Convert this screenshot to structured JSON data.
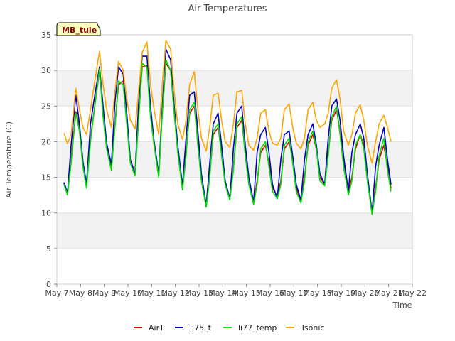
{
  "chart_data": {
    "type": "line",
    "title": "Air Temperatures",
    "xlabel": "Time",
    "ylabel": "Air Temperature (C)",
    "site_label": "MB_tule",
    "xlim": [
      7,
      22
    ],
    "ylim": [
      0,
      35
    ],
    "x_ticks": [
      {
        "value": 7,
        "label": "May 7"
      },
      {
        "value": 8,
        "label": "May 8"
      },
      {
        "value": 9,
        "label": "May 9"
      },
      {
        "value": 10,
        "label": "May 10"
      },
      {
        "value": 11,
        "label": "May 11"
      },
      {
        "value": 12,
        "label": "May 12"
      },
      {
        "value": 13,
        "label": "May 13"
      },
      {
        "value": 14,
        "label": "May 14"
      },
      {
        "value": 15,
        "label": "May 15"
      },
      {
        "value": 16,
        "label": "May 16"
      },
      {
        "value": 17,
        "label": "May 17"
      },
      {
        "value": 18,
        "label": "May 18"
      },
      {
        "value": 19,
        "label": "May 19"
      },
      {
        "value": 20,
        "label": "May 20"
      },
      {
        "value": 21,
        "label": "May 21"
      },
      {
        "value": 22,
        "label": "May 22"
      }
    ],
    "y_ticks": [
      0,
      5,
      10,
      15,
      20,
      25,
      30,
      35
    ],
    "grid": "horizontal bands",
    "legend_position": "bottom",
    "series": [
      {
        "name": "AirT",
        "color": "#dd0000",
        "x": [
          7.3,
          7.45,
          7.6,
          7.8,
          7.95,
          8.1,
          8.25,
          8.42,
          8.6,
          8.8,
          8.95,
          9.1,
          9.3,
          9.45,
          9.6,
          9.8,
          9.95,
          10.1,
          10.3,
          10.45,
          10.6,
          10.8,
          10.95,
          11.1,
          11.3,
          11.45,
          11.6,
          11.8,
          11.95,
          12.1,
          12.3,
          12.45,
          12.6,
          12.8,
          12.95,
          13.1,
          13.3,
          13.45,
          13.6,
          13.8,
          13.95,
          14.1,
          14.3,
          14.45,
          14.6,
          14.8,
          14.95,
          15.1,
          15.3,
          15.45,
          15.6,
          15.8,
          15.95,
          16.1,
          16.3,
          16.45,
          16.6,
          16.8,
          16.95,
          17.1,
          17.3,
          17.45,
          17.6,
          17.8,
          17.95,
          18.1,
          18.3,
          18.45,
          18.6,
          18.8,
          18.95,
          19.1,
          19.3,
          19.45,
          19.6,
          19.8,
          19.95,
          20.1,
          20.3,
          20.45,
          20.6,
          20.8,
          20.95,
          21.1
        ],
        "y": [
          14.2,
          12.7,
          17.5,
          24.2,
          22.0,
          17.0,
          13.9,
          20.5,
          25.0,
          30.0,
          24.0,
          19.5,
          16.5,
          22.5,
          28.0,
          28.5,
          23.0,
          17.5,
          15.6,
          23.5,
          30.5,
          30.7,
          24.0,
          20.0,
          15.3,
          24.0,
          31.0,
          30.0,
          24.5,
          19.0,
          13.5,
          18.5,
          24.0,
          25.0,
          20.0,
          15.0,
          11.2,
          15.5,
          21.0,
          22.0,
          18.5,
          14.5,
          12.0,
          16.5,
          22.0,
          23.0,
          18.5,
          14.5,
          11.5,
          14.5,
          18.5,
          19.5,
          17.0,
          13.5,
          12.3,
          14.5,
          19.0,
          20.0,
          17.5,
          13.5,
          11.6,
          15.0,
          19.5,
          21.0,
          19.0,
          15.0,
          14.0,
          18.5,
          23.0,
          24.5,
          21.5,
          17.0,
          13.0,
          15.0,
          19.0,
          21.0,
          19.5,
          15.0,
          10.2,
          13.5,
          17.5,
          19.5,
          16.5,
          13.5
        ]
      },
      {
        "name": "li75_t",
        "color": "#0000cc",
        "x": [
          7.3,
          7.45,
          7.6,
          7.8,
          7.95,
          8.1,
          8.25,
          8.42,
          8.6,
          8.8,
          8.95,
          9.1,
          9.3,
          9.45,
          9.6,
          9.8,
          9.95,
          10.1,
          10.3,
          10.45,
          10.6,
          10.8,
          10.95,
          11.1,
          11.3,
          11.45,
          11.6,
          11.8,
          11.95,
          12.1,
          12.3,
          12.45,
          12.6,
          12.8,
          12.95,
          13.1,
          13.3,
          13.45,
          13.6,
          13.8,
          13.95,
          14.1,
          14.3,
          14.45,
          14.6,
          14.8,
          14.95,
          15.1,
          15.3,
          15.45,
          15.6,
          15.8,
          15.95,
          16.1,
          16.3,
          16.45,
          16.6,
          16.8,
          16.95,
          17.1,
          17.3,
          17.45,
          17.6,
          17.8,
          17.95,
          18.1,
          18.3,
          18.45,
          18.6,
          18.8,
          18.95,
          19.1,
          19.3,
          19.45,
          19.6,
          19.8,
          19.95,
          20.1,
          20.3,
          20.45,
          20.6,
          20.8,
          20.95,
          21.1
        ],
        "y": [
          14.3,
          12.8,
          19.5,
          26.5,
          22.5,
          17.2,
          14.0,
          22.5,
          26.5,
          30.5,
          25.0,
          19.8,
          16.8,
          25.5,
          30.5,
          29.5,
          24.0,
          17.5,
          15.5,
          25.5,
          32.0,
          32.0,
          25.0,
          20.0,
          15.5,
          25.0,
          33.0,
          31.5,
          25.0,
          19.5,
          13.8,
          20.5,
          26.5,
          27.0,
          21.5,
          15.5,
          11.0,
          17.0,
          22.5,
          24.0,
          19.5,
          14.5,
          12.0,
          19.0,
          24.0,
          25.0,
          19.5,
          15.0,
          11.5,
          18.5,
          21.0,
          22.0,
          18.5,
          14.0,
          12.0,
          17.5,
          21.0,
          21.5,
          18.0,
          14.0,
          11.8,
          17.5,
          21.0,
          22.5,
          19.5,
          15.5,
          14.0,
          20.5,
          25.0,
          26.0,
          23.0,
          18.0,
          13.0,
          18.5,
          21.0,
          22.5,
          20.5,
          15.5,
          10.0,
          16.5,
          19.5,
          22.0,
          17.5,
          14.0
        ]
      },
      {
        "name": "li77_temp",
        "color": "#00dd00",
        "x": [
          7.3,
          7.45,
          7.6,
          7.8,
          7.95,
          8.1,
          8.25,
          8.42,
          8.6,
          8.8,
          8.95,
          9.1,
          9.3,
          9.45,
          9.6,
          9.8,
          9.95,
          10.1,
          10.3,
          10.45,
          10.6,
          10.8,
          10.95,
          11.1,
          11.3,
          11.45,
          11.6,
          11.8,
          11.95,
          12.1,
          12.3,
          12.45,
          12.6,
          12.8,
          12.95,
          13.1,
          13.3,
          13.45,
          13.6,
          13.8,
          13.95,
          14.1,
          14.3,
          14.45,
          14.6,
          14.8,
          14.95,
          15.1,
          15.3,
          15.45,
          15.6,
          15.8,
          15.95,
          16.1,
          16.3,
          16.45,
          16.6,
          16.8,
          16.95,
          17.1,
          17.3,
          17.45,
          17.6,
          17.8,
          17.95,
          18.1,
          18.3,
          18.45,
          18.6,
          18.8,
          18.95,
          19.1,
          19.3,
          19.45,
          19.6,
          19.8,
          19.95,
          20.1,
          20.3,
          20.45,
          20.6,
          20.8,
          20.95,
          21.1
        ],
        "y": [
          14.0,
          12.5,
          17.0,
          24.0,
          21.5,
          16.5,
          13.5,
          20.0,
          25.0,
          30.2,
          23.5,
          19.0,
          16.0,
          22.0,
          28.5,
          28.0,
          22.5,
          17.0,
          15.2,
          23.0,
          31.0,
          30.5,
          23.5,
          19.5,
          15.0,
          24.0,
          31.5,
          30.0,
          24.0,
          18.5,
          13.2,
          18.0,
          24.5,
          25.5,
          19.5,
          14.5,
          10.8,
          15.0,
          21.5,
          22.5,
          18.0,
          14.0,
          11.8,
          16.0,
          22.5,
          23.5,
          18.0,
          14.0,
          11.2,
          14.0,
          19.0,
          20.0,
          16.5,
          13.0,
          12.0,
          14.0,
          19.5,
          20.5,
          17.0,
          13.0,
          11.4,
          14.5,
          20.0,
          21.5,
          19.0,
          14.5,
          13.8,
          18.0,
          23.5,
          25.0,
          21.0,
          16.5,
          12.5,
          14.5,
          19.5,
          21.0,
          19.0,
          14.5,
          9.8,
          13.0,
          18.0,
          20.5,
          16.0,
          13.0
        ]
      },
      {
        "name": "Tsonic",
        "color": "#ffa500",
        "x": [
          7.3,
          7.45,
          7.6,
          7.8,
          7.95,
          8.1,
          8.25,
          8.42,
          8.6,
          8.8,
          8.95,
          9.1,
          9.3,
          9.45,
          9.6,
          9.8,
          9.95,
          10.1,
          10.3,
          10.45,
          10.6,
          10.8,
          10.95,
          11.1,
          11.3,
          11.45,
          11.6,
          11.8,
          11.95,
          12.1,
          12.3,
          12.45,
          12.6,
          12.8,
          12.95,
          13.1,
          13.3,
          13.45,
          13.6,
          13.8,
          13.95,
          14.1,
          14.3,
          14.45,
          14.6,
          14.8,
          14.95,
          15.1,
          15.3,
          15.45,
          15.6,
          15.8,
          15.95,
          16.1,
          16.3,
          16.45,
          16.6,
          16.8,
          16.95,
          17.1,
          17.3,
          17.45,
          17.6,
          17.8,
          17.95,
          18.1,
          18.3,
          18.45,
          18.6,
          18.8,
          18.95,
          19.1,
          19.3,
          19.45,
          19.6,
          19.8,
          19.95,
          20.1,
          20.3,
          20.45,
          20.6,
          20.8,
          20.95,
          21.1
        ],
        "y": [
          21.2,
          19.7,
          21.0,
          27.5,
          24.5,
          22.0,
          21.0,
          24.5,
          28.5,
          32.7,
          28.0,
          24.5,
          22.0,
          27.0,
          31.3,
          30.0,
          26.0,
          23.0,
          21.8,
          27.0,
          32.5,
          34.0,
          28.0,
          24.5,
          21.0,
          28.0,
          34.2,
          33.0,
          27.0,
          22.5,
          20.3,
          23.0,
          28.0,
          29.8,
          24.5,
          20.5,
          18.7,
          22.0,
          26.5,
          26.8,
          23.0,
          20.0,
          19.2,
          22.5,
          27.0,
          27.2,
          22.5,
          19.5,
          18.8,
          20.5,
          24.0,
          24.5,
          21.5,
          19.8,
          19.5,
          20.5,
          24.5,
          25.3,
          22.0,
          19.8,
          19.0,
          20.5,
          24.5,
          25.5,
          23.0,
          22.0,
          22.5,
          24.0,
          27.5,
          28.7,
          26.0,
          21.5,
          19.5,
          21.0,
          24.0,
          25.2,
          23.0,
          19.5,
          17.0,
          20.0,
          22.5,
          23.7,
          22.0,
          20.0
        ]
      }
    ]
  }
}
